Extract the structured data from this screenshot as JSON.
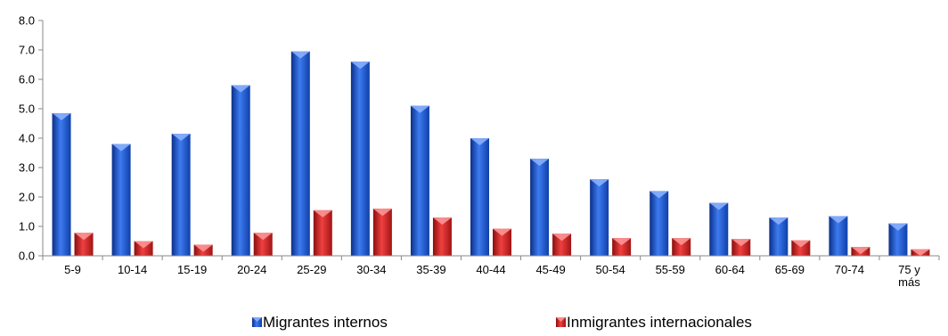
{
  "chart_data": {
    "type": "bar",
    "title": "",
    "xlabel": "",
    "ylabel": "",
    "ylim": [
      0,
      8
    ],
    "yticks": [
      "0.0",
      "1.0",
      "2.0",
      "3.0",
      "4.0",
      "5.0",
      "6.0",
      "7.0",
      "8.0"
    ],
    "grid": false,
    "legend_position": "bottom",
    "categories": [
      "5-9",
      "10-14",
      "15-19",
      "20-24",
      "25-29",
      "30-34",
      "35-39",
      "40-44",
      "45-49",
      "50-54",
      "55-59",
      "60-64",
      "65-69",
      "70-74",
      "75 y más"
    ],
    "category_lines": [
      [
        "5-9"
      ],
      [
        "10-14"
      ],
      [
        "15-19"
      ],
      [
        "20-24"
      ],
      [
        "25-29"
      ],
      [
        "30-34"
      ],
      [
        "35-39"
      ],
      [
        "40-44"
      ],
      [
        "45-49"
      ],
      [
        "50-54"
      ],
      [
        "55-59"
      ],
      [
        "60-64"
      ],
      [
        "65-69"
      ],
      [
        "70-74"
      ],
      [
        "75 y",
        "más"
      ]
    ],
    "series": [
      {
        "name": "Migrantes internos",
        "color": "#1f5bd6",
        "values": [
          4.85,
          3.8,
          4.15,
          5.8,
          6.95,
          6.6,
          5.1,
          4.0,
          3.3,
          2.6,
          2.2,
          1.8,
          1.3,
          1.35,
          1.1
        ]
      },
      {
        "name": "Inmigrantes internacionales",
        "color": "#d62727",
        "values": [
          0.78,
          0.5,
          0.38,
          0.78,
          1.55,
          1.6,
          1.3,
          0.92,
          0.75,
          0.6,
          0.6,
          0.57,
          0.53,
          0.3,
          0.22
        ]
      }
    ]
  }
}
